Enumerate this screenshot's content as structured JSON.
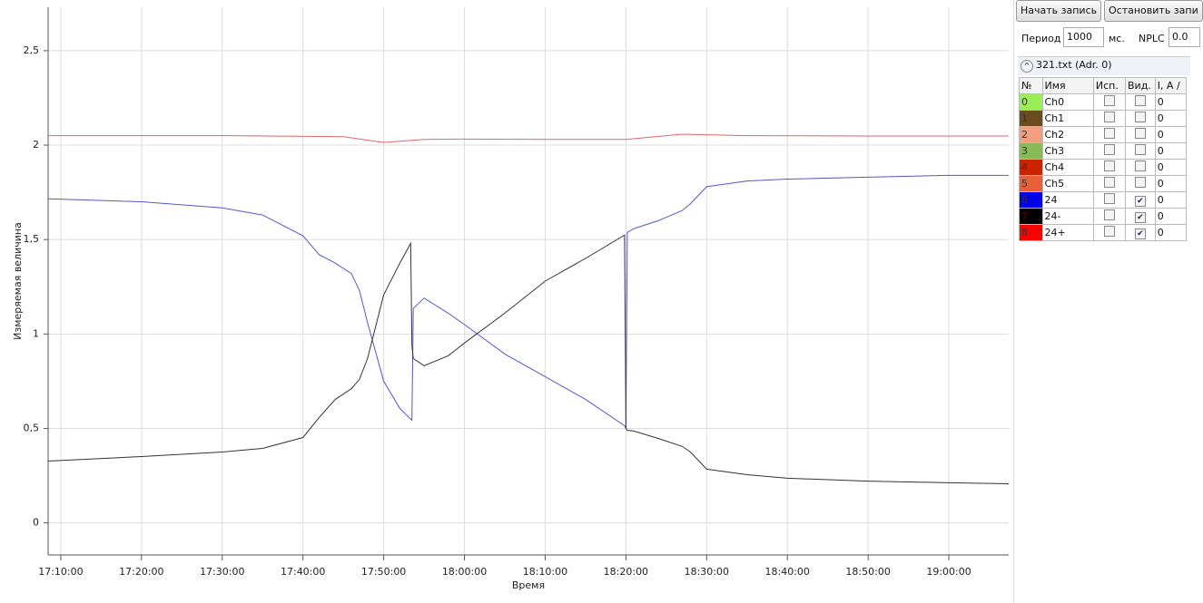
{
  "chart_data": {
    "type": "line",
    "x_label": "Время",
    "y_label": "Измеряемая величина",
    "xlim": [
      "17:08:26",
      "19:07:25"
    ],
    "ylim": [
      -0.17,
      2.73
    ],
    "xticks": [
      "17:10:00",
      "17:20:00",
      "17:30:00",
      "17:40:00",
      "17:50:00",
      "18:00:00",
      "18:10:00",
      "18:20:00",
      "18:30:00",
      "18:40:00",
      "18:50:00",
      "19:00:00"
    ],
    "yticks": [
      0,
      {
        "value": 0.5,
        "label": "0,5"
      },
      1,
      {
        "value": 1.5,
        "label": "1,5"
      },
      2,
      {
        "value": 2.5,
        "label": "2,5"
      }
    ],
    "grid": true,
    "series": [
      {
        "name": "24+",
        "color": "#e06666",
        "x": [
          "17:08:26",
          "17:30:00",
          "17:45:00",
          "17:50:00",
          "17:53:30",
          "17:55:00",
          "18:00:00",
          "18:10:00",
          "18:20:00",
          "18:27:00",
          "18:35:00",
          "18:50:00",
          "19:07:25"
        ],
        "values": [
          2.05,
          2.05,
          2.045,
          2.014,
          2.025,
          2.03,
          2.032,
          2.03,
          2.03,
          2.058,
          2.05,
          2.048,
          2.048
        ]
      },
      {
        "name": "24",
        "color": "#5555cc",
        "x": [
          "17:08:26",
          "17:20:00",
          "17:30:00",
          "17:35:00",
          "17:40:00",
          "17:42:00",
          "17:44:00",
          "17:46:00",
          "17:47:00",
          "17:48:00",
          "17:50:00",
          "17:52:00",
          "17:53:30",
          "17:53:40",
          "17:55:00",
          "17:58:00",
          "18:00:00",
          "18:05:00",
          "18:10:00",
          "18:15:00",
          "18:19:50",
          "18:20:00",
          "18:20:10",
          "18:21:00",
          "18:24:00",
          "18:27:00",
          "18:28:00",
          "18:30:00",
          "18:35:00",
          "18:40:00",
          "18:50:00",
          "19:00:00",
          "19:07:25"
        ],
        "values": [
          1.716,
          1.7,
          1.668,
          1.63,
          1.52,
          1.42,
          1.375,
          1.32,
          1.23,
          1.06,
          0.75,
          0.606,
          0.543,
          1.135,
          1.19,
          1.11,
          1.05,
          0.894,
          0.774,
          0.654,
          0.514,
          0.5,
          1.538,
          1.558,
          1.6,
          1.654,
          1.69,
          1.78,
          1.81,
          1.82,
          1.83,
          1.84,
          1.84
        ]
      },
      {
        "name": "24-",
        "color": "#333333",
        "x": [
          "17:08:26",
          "17:20:00",
          "17:30:00",
          "17:35:00",
          "17:40:00",
          "17:42:00",
          "17:44:00",
          "17:46:00",
          "17:47:00",
          "17:48:00",
          "17:50:00",
          "17:52:00",
          "17:53:20",
          "17:53:30",
          "17:53:40",
          "17:55:00",
          "17:58:00",
          "18:00:00",
          "18:05:00",
          "18:10:00",
          "18:15:00",
          "18:19:50",
          "18:20:00",
          "18:20:10",
          "18:21:00",
          "18:24:00",
          "18:27:00",
          "18:28:00",
          "18:30:00",
          "18:35:00",
          "18:40:00",
          "18:50:00",
          "19:00:00",
          "19:07:25"
        ],
        "values": [
          0.327,
          0.351,
          0.375,
          0.394,
          0.452,
          0.558,
          0.654,
          0.71,
          0.76,
          0.87,
          1.207,
          1.375,
          1.48,
          0.94,
          0.87,
          0.832,
          0.885,
          0.952,
          1.11,
          1.28,
          1.4,
          1.524,
          0.5,
          0.49,
          0.486,
          0.447,
          0.404,
          0.375,
          0.284,
          0.255,
          0.236,
          0.221,
          0.212,
          0.207
        ]
      }
    ]
  },
  "panel": {
    "buttons": [
      "Начать запись",
      "Остановить запи"
    ],
    "period_label": "Период",
    "period_value": "1000",
    "period_unit": "мс.",
    "nplc_label": "NPLC",
    "nplc_value": "0.0",
    "group_title": "321.txt (Adr. 0)",
    "table": {
      "headers": [
        "№",
        "Имя",
        "Исп.",
        "Вид.",
        "I, A /"
      ],
      "rows": [
        {
          "index": "0",
          "color": "#99ee55",
          "name": "Ch0",
          "used": false,
          "visible": false,
          "value": "0"
        },
        {
          "index": "1",
          "color": "#6b4c1f",
          "name": "Ch1",
          "used": false,
          "visible": false,
          "value": "0"
        },
        {
          "index": "2",
          "color": "#f0a080",
          "name": "Ch2",
          "used": false,
          "visible": false,
          "value": "0"
        },
        {
          "index": "3",
          "color": "#88bb55",
          "name": "Ch3",
          "used": false,
          "visible": false,
          "value": "0"
        },
        {
          "index": "4",
          "color": "#cc2200",
          "name": "Ch4",
          "used": false,
          "visible": false,
          "value": "0"
        },
        {
          "index": "5",
          "color": "#e8603a",
          "name": "Ch5",
          "used": false,
          "visible": false,
          "value": "0"
        },
        {
          "index": "6",
          "color": "#0000ee",
          "name": "24",
          "used": false,
          "visible": true,
          "value": "0"
        },
        {
          "index": "7",
          "color": "#000000",
          "name": "24-",
          "used": false,
          "visible": true,
          "value": "0"
        },
        {
          "index": "8",
          "color": "#ff0000",
          "name": "24+",
          "used": false,
          "visible": true,
          "value": "0"
        }
      ]
    }
  }
}
